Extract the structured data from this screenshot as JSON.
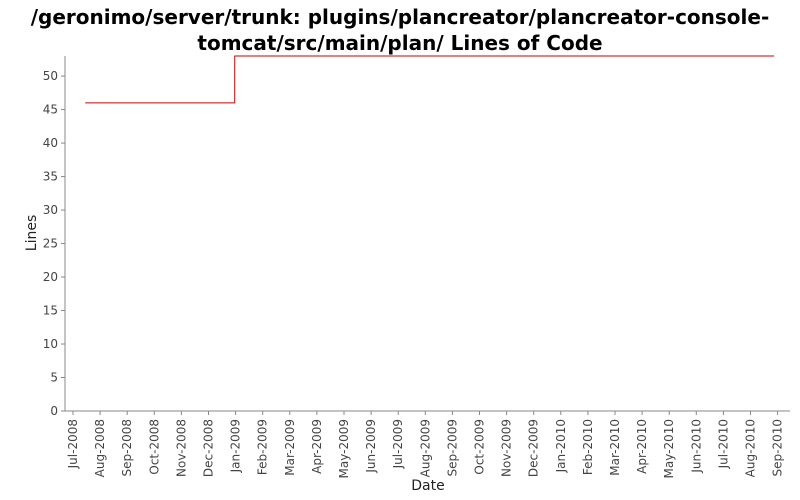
{
  "chart_data": {
    "type": "line",
    "title_line1": "/geronimo/server/trunk: plugins/plancreator/plancreator-console-",
    "title_line2": "tomcat/src/main/plan/ Lines of Code",
    "xlabel": "Date",
    "ylabel": "Lines",
    "ylim": [
      0,
      53
    ],
    "yticks": [
      0,
      5,
      10,
      15,
      20,
      25,
      30,
      35,
      40,
      45,
      50
    ],
    "x_ticks": [
      "Jul-2008",
      "Aug-2008",
      "Sep-2008",
      "Oct-2008",
      "Nov-2008",
      "Dec-2008",
      "Jan-2009",
      "Feb-2009",
      "Mar-2009",
      "Apr-2009",
      "May-2009",
      "Jun-2009",
      "Jul-2009",
      "Aug-2009",
      "Sep-2009",
      "Oct-2009",
      "Nov-2009",
      "Dec-2009",
      "Jan-2010",
      "Feb-2010",
      "Mar-2010",
      "Apr-2010",
      "May-2010",
      "Jun-2010",
      "Jul-2010",
      "Aug-2010",
      "Sep-2010"
    ],
    "series": [
      {
        "color": "#cc0000",
        "step": true,
        "points": [
          {
            "x": "2008-07-15",
            "y": 46
          },
          {
            "x": "2008-12-31",
            "y": 53
          },
          {
            "x": "2010-08-28",
            "y": 53
          }
        ]
      }
    ],
    "grid": false
  }
}
